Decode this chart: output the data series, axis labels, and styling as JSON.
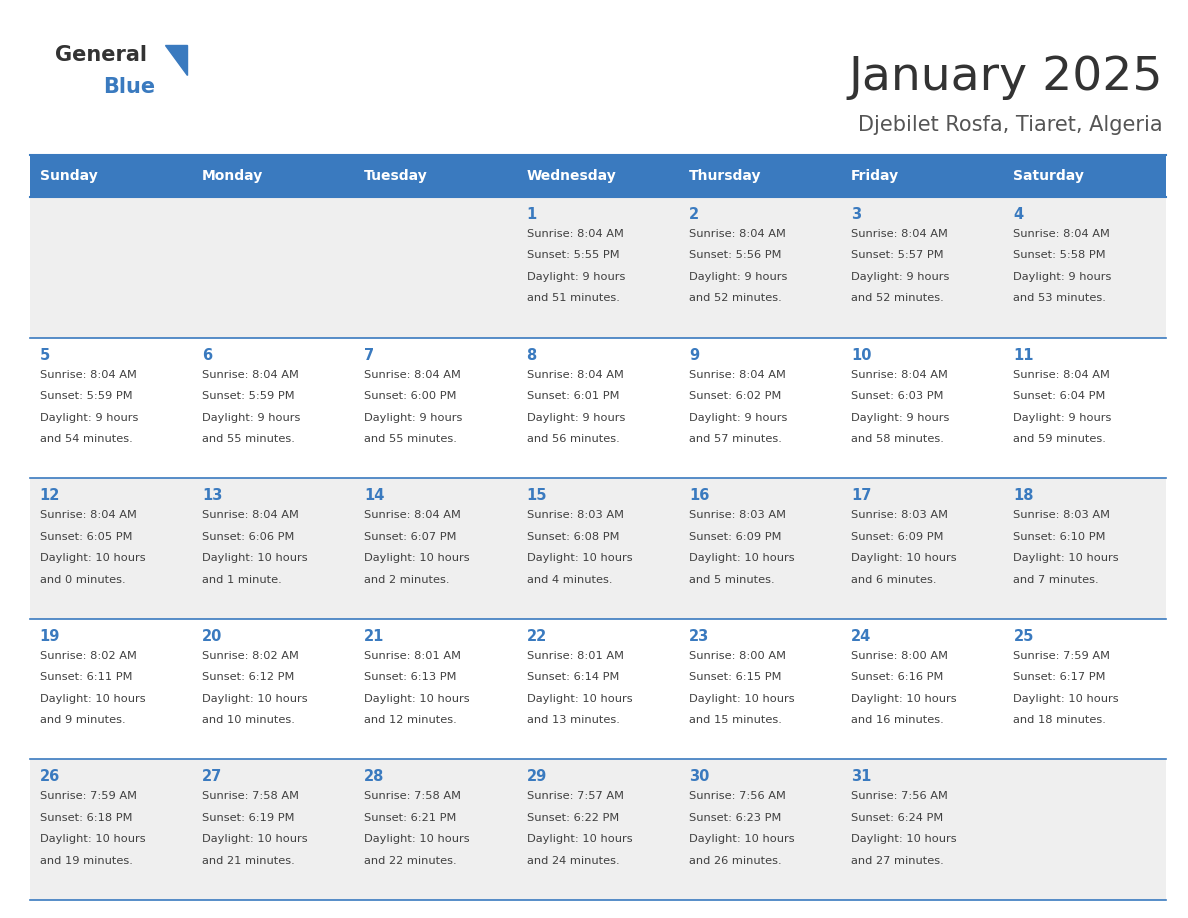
{
  "title": "January 2025",
  "subtitle": "Djebilet Rosfa, Tiaret, Algeria",
  "header_color": "#3a7abf",
  "header_text_color": "#ffffff",
  "day_names": [
    "Sunday",
    "Monday",
    "Tuesday",
    "Wednesday",
    "Thursday",
    "Friday",
    "Saturday"
  ],
  "background_color": "#ffffff",
  "cell_bg_odd": "#efefef",
  "cell_bg_even": "#ffffff",
  "day_num_color": "#3a7abf",
  "text_color": "#404040",
  "line_color": "#3a7abf",
  "title_color": "#333333",
  "subtitle_color": "#555555",
  "calendar": [
    [
      {
        "day": 0,
        "sunrise": "",
        "sunset": "",
        "daylight": ""
      },
      {
        "day": 0,
        "sunrise": "",
        "sunset": "",
        "daylight": ""
      },
      {
        "day": 0,
        "sunrise": "",
        "sunset": "",
        "daylight": ""
      },
      {
        "day": 1,
        "sunrise": "8:04 AM",
        "sunset": "5:55 PM",
        "daylight": "9 hours and 51 minutes."
      },
      {
        "day": 2,
        "sunrise": "8:04 AM",
        "sunset": "5:56 PM",
        "daylight": "9 hours and 52 minutes."
      },
      {
        "day": 3,
        "sunrise": "8:04 AM",
        "sunset": "5:57 PM",
        "daylight": "9 hours and 52 minutes."
      },
      {
        "day": 4,
        "sunrise": "8:04 AM",
        "sunset": "5:58 PM",
        "daylight": "9 hours and 53 minutes."
      }
    ],
    [
      {
        "day": 5,
        "sunrise": "8:04 AM",
        "sunset": "5:59 PM",
        "daylight": "9 hours and 54 minutes."
      },
      {
        "day": 6,
        "sunrise": "8:04 AM",
        "sunset": "5:59 PM",
        "daylight": "9 hours and 55 minutes."
      },
      {
        "day": 7,
        "sunrise": "8:04 AM",
        "sunset": "6:00 PM",
        "daylight": "9 hours and 55 minutes."
      },
      {
        "day": 8,
        "sunrise": "8:04 AM",
        "sunset": "6:01 PM",
        "daylight": "9 hours and 56 minutes."
      },
      {
        "day": 9,
        "sunrise": "8:04 AM",
        "sunset": "6:02 PM",
        "daylight": "9 hours and 57 minutes."
      },
      {
        "day": 10,
        "sunrise": "8:04 AM",
        "sunset": "6:03 PM",
        "daylight": "9 hours and 58 minutes."
      },
      {
        "day": 11,
        "sunrise": "8:04 AM",
        "sunset": "6:04 PM",
        "daylight": "9 hours and 59 minutes."
      }
    ],
    [
      {
        "day": 12,
        "sunrise": "8:04 AM",
        "sunset": "6:05 PM",
        "daylight": "10 hours and 0 minutes."
      },
      {
        "day": 13,
        "sunrise": "8:04 AM",
        "sunset": "6:06 PM",
        "daylight": "10 hours and 1 minute."
      },
      {
        "day": 14,
        "sunrise": "8:04 AM",
        "sunset": "6:07 PM",
        "daylight": "10 hours and 2 minutes."
      },
      {
        "day": 15,
        "sunrise": "8:03 AM",
        "sunset": "6:08 PM",
        "daylight": "10 hours and 4 minutes."
      },
      {
        "day": 16,
        "sunrise": "8:03 AM",
        "sunset": "6:09 PM",
        "daylight": "10 hours and 5 minutes."
      },
      {
        "day": 17,
        "sunrise": "8:03 AM",
        "sunset": "6:09 PM",
        "daylight": "10 hours and 6 minutes."
      },
      {
        "day": 18,
        "sunrise": "8:03 AM",
        "sunset": "6:10 PM",
        "daylight": "10 hours and 7 minutes."
      }
    ],
    [
      {
        "day": 19,
        "sunrise": "8:02 AM",
        "sunset": "6:11 PM",
        "daylight": "10 hours and 9 minutes."
      },
      {
        "day": 20,
        "sunrise": "8:02 AM",
        "sunset": "6:12 PM",
        "daylight": "10 hours and 10 minutes."
      },
      {
        "day": 21,
        "sunrise": "8:01 AM",
        "sunset": "6:13 PM",
        "daylight": "10 hours and 12 minutes."
      },
      {
        "day": 22,
        "sunrise": "8:01 AM",
        "sunset": "6:14 PM",
        "daylight": "10 hours and 13 minutes."
      },
      {
        "day": 23,
        "sunrise": "8:00 AM",
        "sunset": "6:15 PM",
        "daylight": "10 hours and 15 minutes."
      },
      {
        "day": 24,
        "sunrise": "8:00 AM",
        "sunset": "6:16 PM",
        "daylight": "10 hours and 16 minutes."
      },
      {
        "day": 25,
        "sunrise": "7:59 AM",
        "sunset": "6:17 PM",
        "daylight": "10 hours and 18 minutes."
      }
    ],
    [
      {
        "day": 26,
        "sunrise": "7:59 AM",
        "sunset": "6:18 PM",
        "daylight": "10 hours and 19 minutes."
      },
      {
        "day": 27,
        "sunrise": "7:58 AM",
        "sunset": "6:19 PM",
        "daylight": "10 hours and 21 minutes."
      },
      {
        "day": 28,
        "sunrise": "7:58 AM",
        "sunset": "6:21 PM",
        "daylight": "10 hours and 22 minutes."
      },
      {
        "day": 29,
        "sunrise": "7:57 AM",
        "sunset": "6:22 PM",
        "daylight": "10 hours and 24 minutes."
      },
      {
        "day": 30,
        "sunrise": "7:56 AM",
        "sunset": "6:23 PM",
        "daylight": "10 hours and 26 minutes."
      },
      {
        "day": 31,
        "sunrise": "7:56 AM",
        "sunset": "6:24 PM",
        "daylight": "10 hours and 27 minutes."
      },
      {
        "day": 0,
        "sunrise": "",
        "sunset": "",
        "daylight": ""
      }
    ]
  ]
}
